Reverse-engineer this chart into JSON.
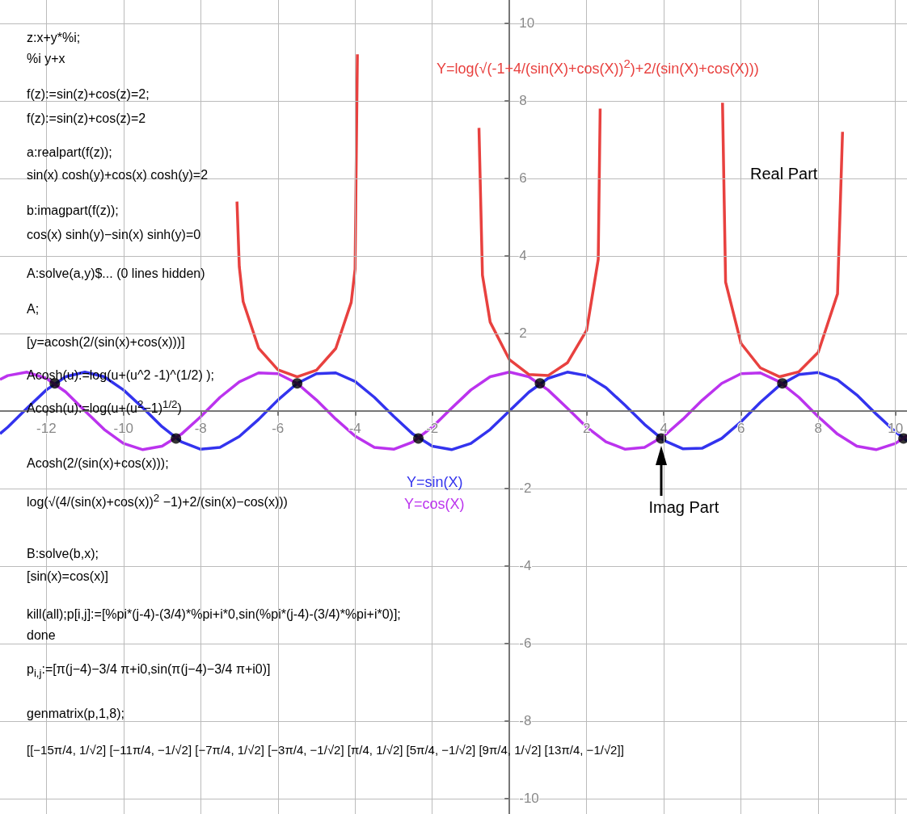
{
  "chart_data": {
    "type": "line",
    "xlim": [
      -13.2,
      10.3
    ],
    "ylim": [
      -10.4,
      10.6
    ],
    "xticks": [
      -12,
      -10,
      -8,
      -6,
      -4,
      -2,
      2,
      4,
      6,
      8,
      10
    ],
    "yticks": [
      -10,
      -8,
      -6,
      -4,
      -2,
      2,
      4,
      6,
      8,
      10
    ],
    "grid": true,
    "marker": "none",
    "series": [
      {
        "name": "Y=sin(X)",
        "color": "#3333ee",
        "x": [
          -13.2,
          -13,
          -12.5,
          -12,
          -11.5,
          -11,
          -10.5,
          -10,
          -9.5,
          -9,
          -8.5,
          -8,
          -7.5,
          -7,
          -6.5,
          -6,
          -5.5,
          -5,
          -4.5,
          -4,
          -3.5,
          -3,
          -2.5,
          -2,
          -1.5,
          -1,
          -0.5,
          0,
          0.5,
          1,
          1.5,
          2,
          2.5,
          3,
          3.5,
          4,
          4.5,
          5,
          5.5,
          6,
          6.5,
          7,
          7.5,
          8,
          8.5,
          9,
          9.5,
          10,
          10.3
        ],
        "values": [
          -0.59,
          -0.42,
          0.07,
          0.54,
          0.88,
          1.0,
          0.88,
          0.54,
          0.08,
          -0.41,
          -0.8,
          -0.99,
          -0.94,
          -0.66,
          -0.22,
          0.28,
          0.71,
          0.96,
          0.98,
          0.76,
          0.35,
          -0.14,
          -0.6,
          -0.91,
          -1.0,
          -0.84,
          -0.48,
          0,
          0.48,
          0.84,
          1.0,
          0.91,
          0.6,
          0.14,
          -0.35,
          -0.76,
          -0.98,
          -0.96,
          -0.71,
          -0.28,
          0.22,
          0.66,
          0.94,
          0.99,
          0.8,
          0.41,
          -0.08,
          -0.54,
          -0.77
        ]
      },
      {
        "name": "Y=cos(X)",
        "color": "#bb33ee",
        "x": [
          -13.2,
          -13,
          -12.5,
          -12,
          -11.5,
          -11,
          -10.5,
          -10,
          -9.5,
          -9,
          -8.5,
          -8,
          -7.5,
          -7,
          -6.5,
          -6,
          -5.5,
          -5,
          -4.5,
          -4,
          -3.5,
          -3,
          -2.5,
          -2,
          -1.5,
          -1,
          -0.5,
          0,
          0.5,
          1,
          1.5,
          2,
          2.5,
          3,
          3.5,
          4,
          4.5,
          5,
          5.5,
          6,
          6.5,
          7,
          7.5,
          8,
          8.5,
          9,
          9.5,
          10,
          10.3
        ],
        "values": [
          0.81,
          0.91,
          1.0,
          0.84,
          0.49,
          0.0,
          -0.48,
          -0.84,
          -1.0,
          -0.91,
          -0.6,
          -0.15,
          0.35,
          0.75,
          0.98,
          0.96,
          0.71,
          0.28,
          -0.21,
          -0.65,
          -0.94,
          -0.99,
          -0.8,
          -0.42,
          0.07,
          0.54,
          0.88,
          1.0,
          0.88,
          0.54,
          0.07,
          -0.42,
          -0.8,
          -0.99,
          -0.94,
          -0.65,
          -0.21,
          0.28,
          0.71,
          0.96,
          0.98,
          0.75,
          0.35,
          -0.15,
          -0.6,
          -0.91,
          -1.0,
          -0.84,
          -0.64
        ]
      },
      {
        "name": "Y=log(√(-1+4/(sin(X)+cos(X))$^{2}$)+2/(sin(X)+cos(X)))",
        "color": "#e8413f",
        "x": [
          -7.06,
          -7.0,
          -6.9,
          -6.5,
          -6,
          -5.5,
          -5,
          -4.5,
          -4.1,
          -4,
          -3.94,
          -3.5,
          -0.79,
          -0.7,
          -0.5,
          0,
          0.5,
          1,
          1.5,
          2,
          2.3,
          2.35,
          4,
          5.52,
          5.6,
          6,
          6.5,
          7,
          7.5,
          8,
          8.5,
          8.63
        ],
        "values": [
          5.4,
          3.72,
          2.82,
          1.62,
          1.06,
          0.88,
          1.05,
          1.61,
          2.8,
          3.66,
          9.2,
          null,
          7.3,
          3.5,
          2.29,
          1.32,
          0.94,
          0.91,
          1.24,
          2.08,
          3.91,
          7.8,
          null,
          7.95,
          3.32,
          1.74,
          1.11,
          0.88,
          1.01,
          1.51,
          3.02,
          7.2
        ]
      },
      {
        "type": "scatter",
        "marker": "circle",
        "color": "#000000",
        "x": [
          -11.78,
          -8.64,
          -5.5,
          -2.36,
          0.79,
          3.93,
          7.07,
          10.21
        ],
        "values": [
          0.71,
          -0.71,
          0.71,
          -0.71,
          0.71,
          -0.71,
          0.71,
          -0.71
        ]
      }
    ],
    "annotations": [
      "z:x+y*%i;",
      "%i y+x",
      "f(z):=sin(z)+cos(z)=2;",
      "f(z):=sin(z)+cos(z)=2",
      "a:realpart(f(z));",
      "sin(x) cosh(y)+cos(x) cosh(y)=2",
      "b:imagpart(f(z));",
      "cos(x) sinh(y)−sin(x) sinh(y)=0",
      "A:solve(a,y)$... (0 lines hidden)",
      "A;",
      "[y=acosh(2/(sin(x)+cos(x)))]",
      "Acosh(u):=log(u+(u^2 -1)^(1/2) );",
      "Acosh(u):=log(u+(u$^{2}$−1)$^{1/2}$)",
      "Acosh(2/(sin(x)+cos(x)));",
      "log(√(4/(sin(x)+cos(x))$^{2}$ −1)+2/(sin(x)−cos(x)))",
      "B:solve(b,x);",
      "[sin(x)=cos(x)]",
      "kill(all);p[i,j]:=[%pi*(j-4)-(3/4)*%pi+i*0,sin(%pi*(j-4)-(3/4)*%pi+i*0)];",
      "done",
      "p$_{i,j}$:=[π(j−4)−3/4 π+i0,sin(π(j−4)−3/4 π+i0)]",
      "genmatrix(p,1,8);",
      "[[−15π/4, 1/√2] [−11π/4, −1/√2] [−7π/4, 1/√2] [−3π/4, −1/√2] [π/4, 1/√2] [5π/4, −1/√2] [9π/4, 1/√2] [13π/4, −1/√2]]",
      "Real Part",
      "Imag Part"
    ]
  }
}
